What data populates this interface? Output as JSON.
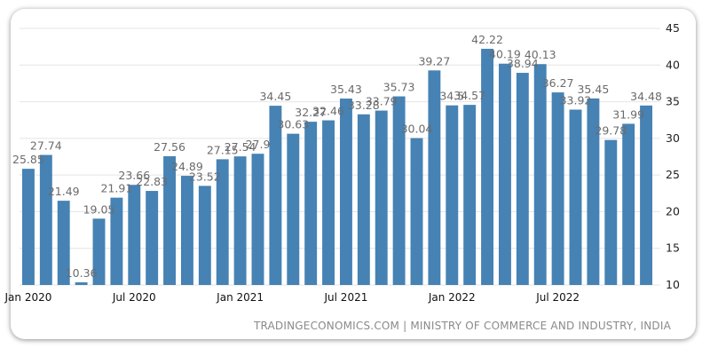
{
  "chart_data": {
    "type": "bar",
    "title": "",
    "xlabel": "",
    "ylabel": "",
    "ylim": [
      10,
      45
    ],
    "yticks": [
      10,
      15,
      20,
      25,
      30,
      35,
      40,
      45
    ],
    "grid": true,
    "color": "#4682b4",
    "categories": [
      "Jan 2020",
      "Feb 2020",
      "Mar 2020",
      "Apr 2020",
      "May 2020",
      "Jun 2020",
      "Jul 2020",
      "Aug 2020",
      "Sep 2020",
      "Oct 2020",
      "Nov 2020",
      "Dec 2020",
      "Jan 2021",
      "Feb 2021",
      "Mar 2021",
      "Apr 2021",
      "May 2021",
      "Jun 2021",
      "Jul 2021",
      "Aug 2021",
      "Sep 2021",
      "Oct 2021",
      "Nov 2021",
      "Dec 2021",
      "Jan 2022",
      "Feb 2022",
      "Mar 2022",
      "Apr 2022",
      "May 2022",
      "Jun 2022",
      "Jul 2022",
      "Aug 2022",
      "Sep 2022",
      "Oct 2022",
      "Nov 2022",
      "Dec 2022"
    ],
    "values": [
      25.85,
      27.74,
      21.49,
      10.36,
      19.05,
      21.91,
      23.66,
      22.83,
      27.56,
      24.89,
      23.52,
      27.15,
      27.54,
      27.9,
      34.45,
      30.63,
      32.27,
      32.46,
      35.43,
      33.28,
      33.79,
      35.73,
      30.04,
      39.27,
      34.5,
      34.57,
      42.22,
      40.19,
      38.94,
      40.13,
      36.27,
      33.92,
      35.45,
      29.78,
      31.99,
      34.48
    ],
    "value_labels": [
      "25.85",
      "27.74",
      "21.49",
      "10.36",
      "19.05",
      "21.91",
      "23.66",
      "22.83",
      "27.56",
      "24.89",
      "23.52",
      "27.15",
      "27.54",
      "27.9",
      "34.45",
      "30.63",
      "32.27",
      "32.46",
      "35.43",
      "33.28",
      "33.79",
      "35.73",
      "30.04",
      "39.27",
      "34.5",
      "34.57",
      "42.22",
      "40.19",
      "38.94",
      "40.13",
      "36.27",
      "33.92",
      "35.45",
      "29.78",
      "31.99",
      "34.48"
    ],
    "x_tick_labels": [
      {
        "index": 0,
        "text": "Jan 2020"
      },
      {
        "index": 6,
        "text": "Jul 2020"
      },
      {
        "index": 12,
        "text": "Jan 2021"
      },
      {
        "index": 18,
        "text": "Jul 2021"
      },
      {
        "index": 24,
        "text": "Jan 2022"
      },
      {
        "index": 30,
        "text": "Jul 2022"
      }
    ]
  },
  "source_text": "TRADINGECONOMICS.COM | MINISTRY OF COMMERCE AND INDUSTRY, INDIA"
}
